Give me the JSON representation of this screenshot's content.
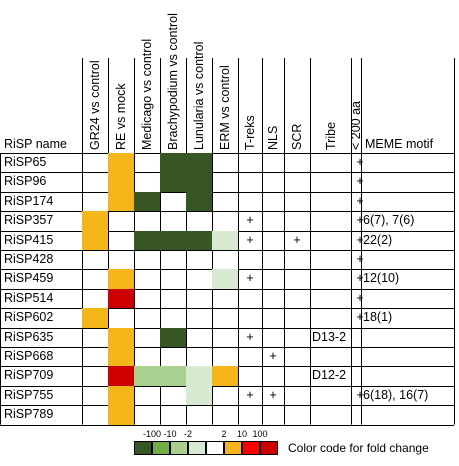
{
  "headers": {
    "name": "RiSP name",
    "columns": [
      "GR24 vs control",
      "RE vs mock",
      "Medicago vs control",
      "Brachypodium vs control",
      "Lunularia vs control",
      "ERM vs control",
      "T-reks",
      "NLS",
      "SCR",
      "Tribe",
      "< 200 aa",
      "MEME motif"
    ]
  },
  "palette": {
    "Y": "#f4b618",
    "R": "#cc0000",
    "DG": "#375623",
    "MG": "#a9d08e",
    "LG": "#d9ead3",
    "W": "#ffffff"
  },
  "rows": [
    {
      "name": "RiSP65",
      "c": [
        "W",
        "Y",
        "W",
        "DG",
        "DG",
        "W"
      ],
      "treks": "",
      "nls": "",
      "scr": "",
      "tribe": "",
      "aa": "+",
      "meme": ""
    },
    {
      "name": "RiSP96",
      "c": [
        "W",
        "Y",
        "W",
        "DG",
        "DG",
        "W"
      ],
      "treks": "",
      "nls": "",
      "scr": "",
      "tribe": "",
      "aa": "+",
      "meme": ""
    },
    {
      "name": "RiSP174",
      "c": [
        "W",
        "Y",
        "DG",
        "W",
        "DG",
        "W"
      ],
      "treks": "",
      "nls": "",
      "scr": "",
      "tribe": "",
      "aa": "+",
      "meme": ""
    },
    {
      "name": "RiSP357",
      "c": [
        "Y",
        "W",
        "W",
        "W",
        "W",
        "W"
      ],
      "treks": "+",
      "nls": "",
      "scr": "",
      "tribe": "",
      "aa": "+",
      "meme": "6(7), 7(6)"
    },
    {
      "name": "RiSP415",
      "c": [
        "Y",
        "W",
        "DG",
        "DG",
        "DG",
        "LG"
      ],
      "treks": "+",
      "nls": "",
      "scr": "+",
      "tribe": "",
      "aa": "+",
      "meme": "22(2)"
    },
    {
      "name": "RiSP428",
      "c": [
        "W",
        "W",
        "W",
        "W",
        "W",
        "W"
      ],
      "treks": "",
      "nls": "",
      "scr": "",
      "tribe": "",
      "aa": "+",
      "meme": ""
    },
    {
      "name": "RiSP459",
      "c": [
        "W",
        "Y",
        "W",
        "W",
        "W",
        "LG"
      ],
      "treks": "+",
      "nls": "",
      "scr": "",
      "tribe": "",
      "aa": "+",
      "meme": "12(10)"
    },
    {
      "name": "RiSP514",
      "c": [
        "W",
        "R",
        "W",
        "W",
        "W",
        "W"
      ],
      "treks": "",
      "nls": "",
      "scr": "",
      "tribe": "",
      "aa": "+",
      "meme": ""
    },
    {
      "name": "RiSP602",
      "c": [
        "Y",
        "W",
        "W",
        "W",
        "W",
        "W"
      ],
      "treks": "",
      "nls": "",
      "scr": "",
      "tribe": "",
      "aa": "+",
      "meme": "18(1)"
    },
    {
      "name": "RiSP635",
      "c": [
        "W",
        "Y",
        "W",
        "DG",
        "W",
        "W"
      ],
      "treks": "+",
      "nls": "",
      "scr": "",
      "tribe": "D13-2",
      "aa": "",
      "meme": ""
    },
    {
      "name": "RiSP668",
      "c": [
        "W",
        "Y",
        "W",
        "W",
        "W",
        "W"
      ],
      "treks": "",
      "nls": "+",
      "scr": "",
      "tribe": "",
      "aa": "",
      "meme": ""
    },
    {
      "name": "RiSP709",
      "c": [
        "W",
        "R",
        "MG",
        "MG",
        "LG",
        "Y"
      ],
      "treks": "",
      "nls": "",
      "scr": "",
      "tribe": "D12-2",
      "aa": "",
      "meme": ""
    },
    {
      "name": "RiSP755",
      "c": [
        "W",
        "Y",
        "W",
        "W",
        "LG",
        "W"
      ],
      "treks": "+",
      "nls": "+",
      "scr": "",
      "tribe": "",
      "aa": "+",
      "meme": "6(18), 16(7)"
    },
    {
      "name": "RiSP789",
      "c": [
        "W",
        "Y",
        "W",
        "W",
        "W",
        "W"
      ],
      "treks": "",
      "nls": "",
      "scr": "",
      "tribe": "",
      "aa": "",
      "meme": ""
    }
  ],
  "legend": {
    "labels": [
      "-100",
      "-10",
      "-2",
      "2",
      "10",
      "100"
    ],
    "colors": [
      "#375623",
      "#70ad47",
      "#a9d08e",
      "#d9ead3",
      "#ffffff",
      "#f4b618",
      "#ff0000",
      "#cc0000"
    ],
    "caption": "Color code for fold change"
  }
}
